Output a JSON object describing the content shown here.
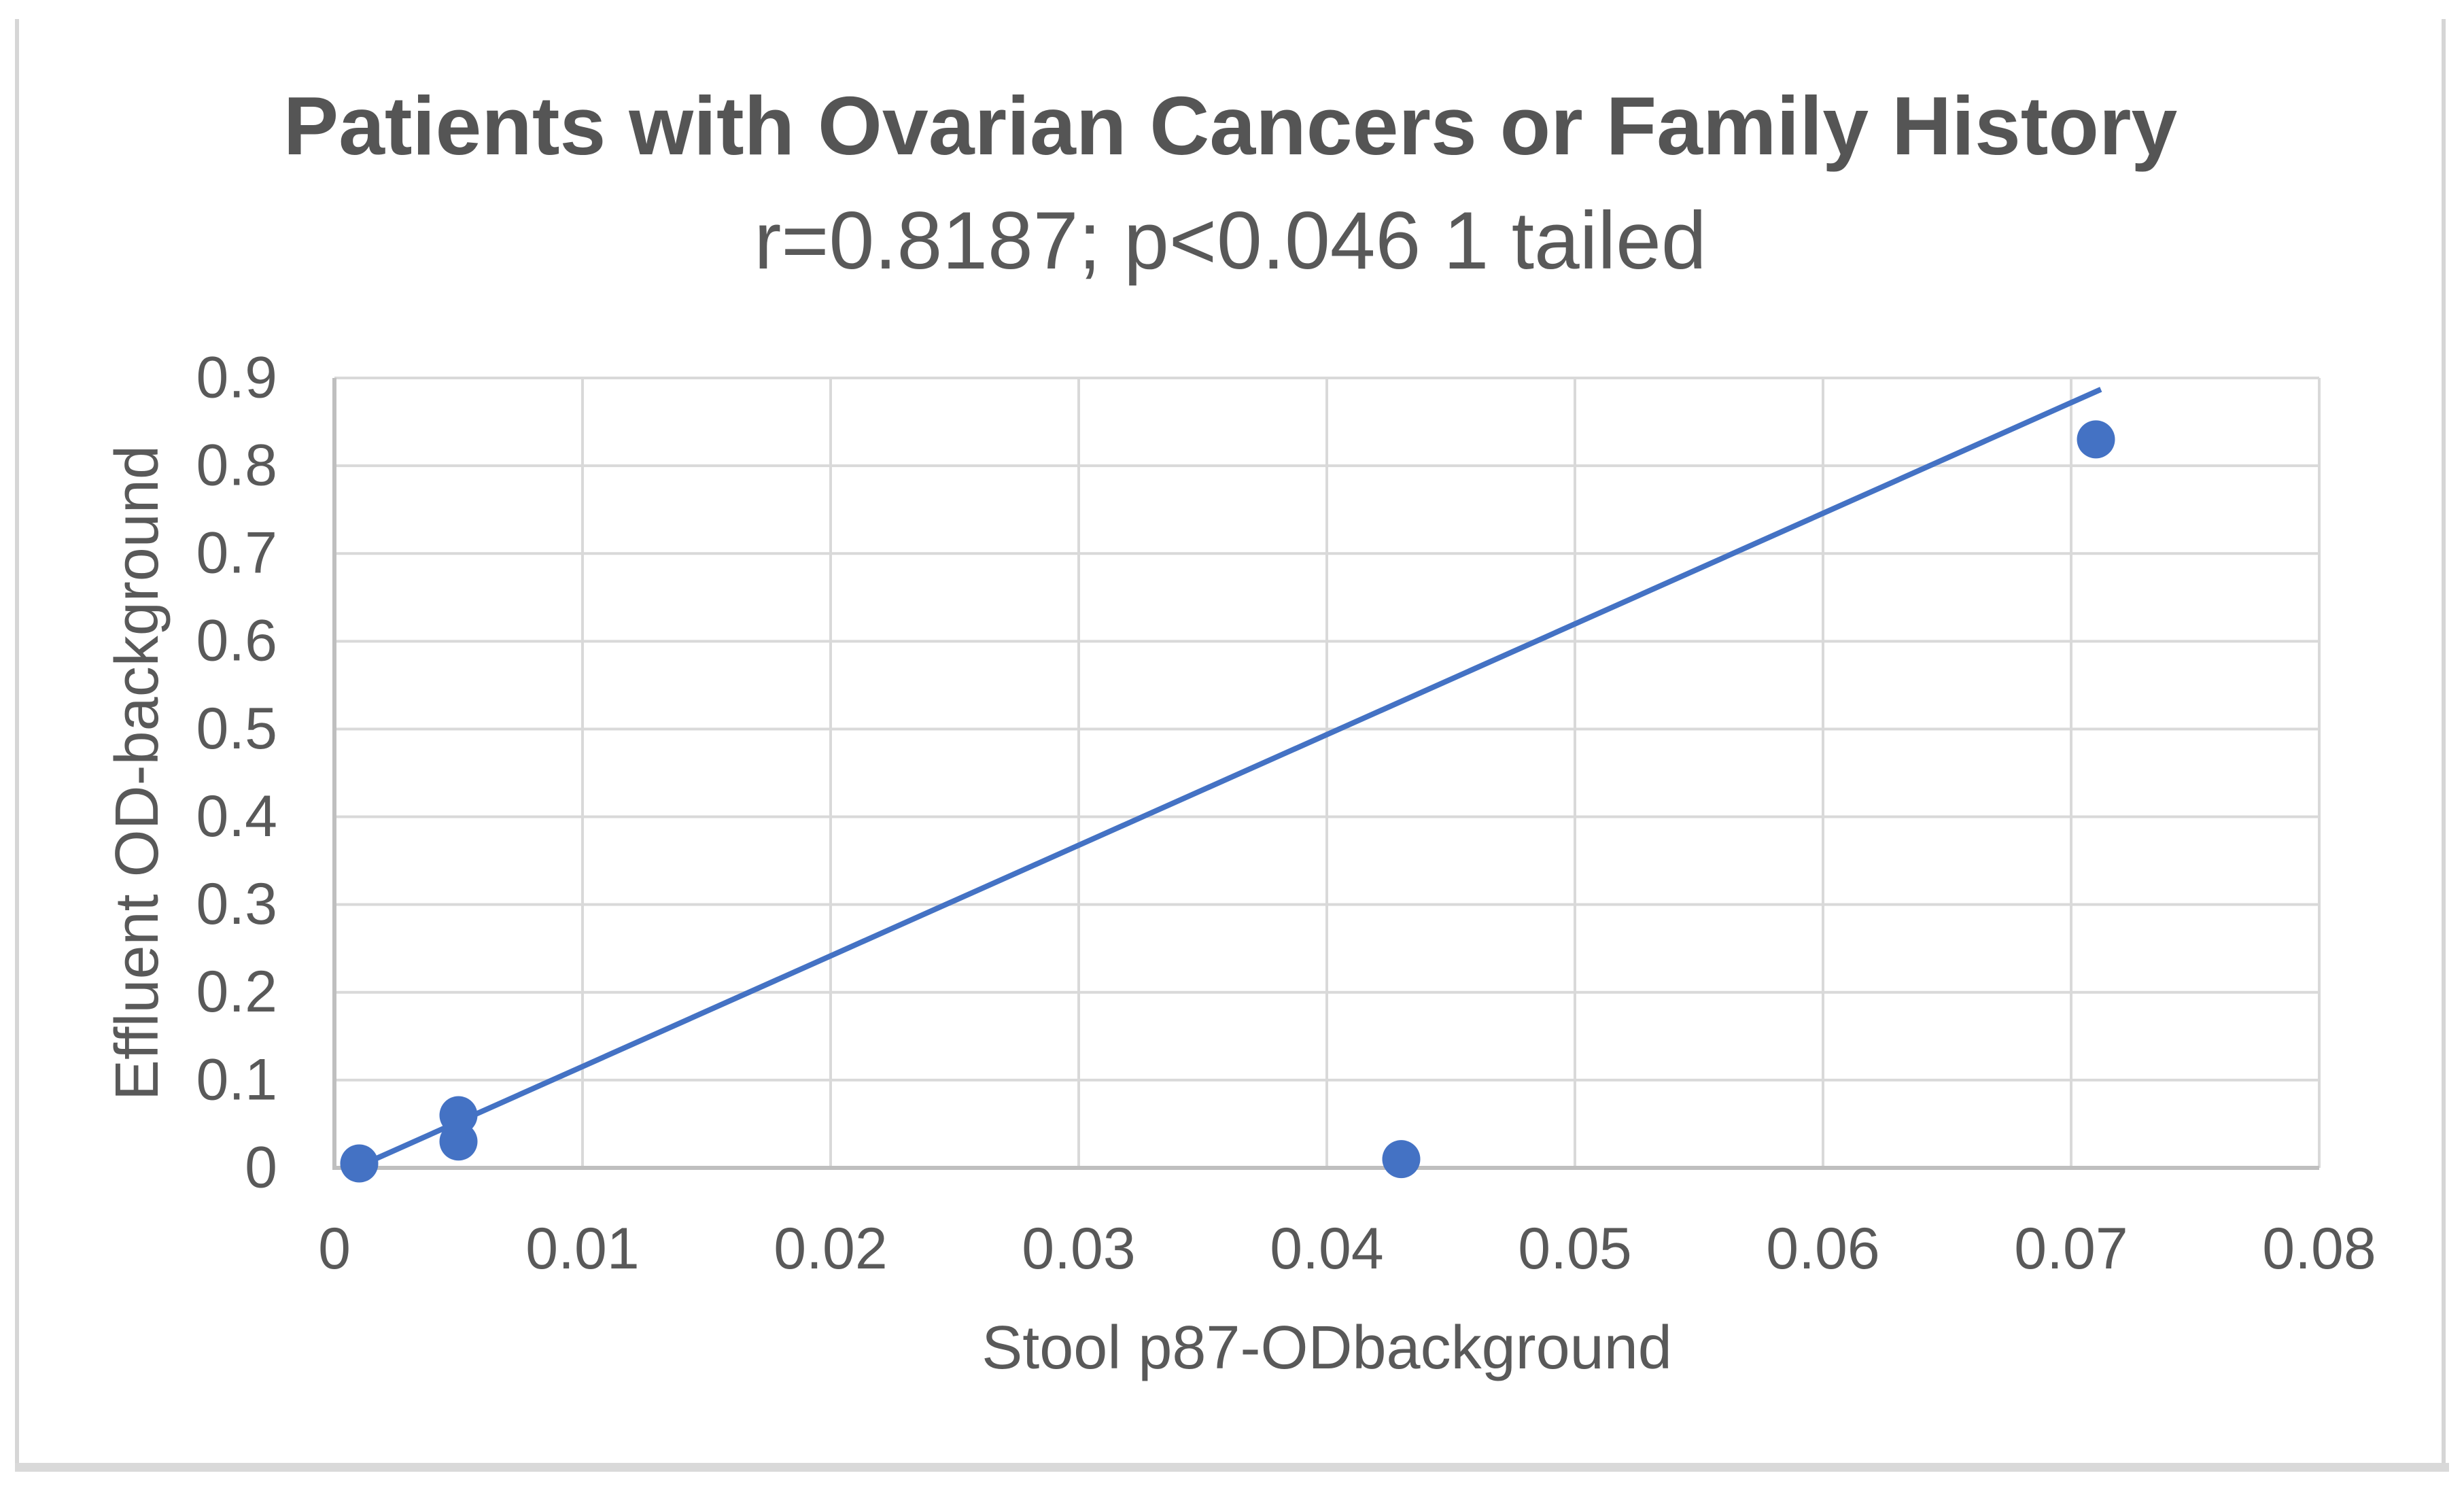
{
  "figure": {
    "title": "Patients with Ovarian Cancers or Family History",
    "subtitle": "r=0.8187; p<0.046 1 tailed"
  },
  "chart_data": {
    "type": "scatter",
    "title": "Patients with Ovarian Cancers or Family History",
    "subtitle": "r=0.8187; p<0.046 1 tailed",
    "xlabel": "Stool p87-ODbackground",
    "ylabel": "Effluent OD-background",
    "xlim": [
      0,
      0.08
    ],
    "ylim": [
      0,
      0.9
    ],
    "x_tick_values": [
      0,
      0.01,
      0.02,
      0.03,
      0.04,
      0.05,
      0.06,
      0.07,
      0.08
    ],
    "x_tick_labels": [
      "0",
      "0.01",
      "0.02",
      "0.03",
      "0.04",
      "0.05",
      "0.06",
      "0.07",
      "0.08"
    ],
    "y_tick_values": [
      0,
      0.1,
      0.2,
      0.3,
      0.4,
      0.5,
      0.6,
      0.7,
      0.8,
      0.9
    ],
    "y_tick_labels": [
      "0",
      "0.1",
      "0.2",
      "0.3",
      "0.4",
      "0.5",
      "0.6",
      "0.7",
      "0.8",
      "0.9"
    ],
    "grid": true,
    "legend": "none",
    "points": [
      {
        "x": 0.001,
        "y": 0.005
      },
      {
        "x": 0.005,
        "y": 0.03
      },
      {
        "x": 0.005,
        "y": 0.06
      },
      {
        "x": 0.043,
        "y": 0.01
      },
      {
        "x": 0.071,
        "y": 0.83
      }
    ],
    "trendline": {
      "x1": 0.001,
      "y1": 0.002,
      "x2": 0.0712,
      "y2": 0.887
    },
    "colors": {
      "marker": "#4472C4",
      "trendline": "#4472C4",
      "gridline": "#D9D9D9",
      "axis_line": "#BFBFBF",
      "text": "#595959",
      "frame": "#D9D9D9"
    }
  }
}
